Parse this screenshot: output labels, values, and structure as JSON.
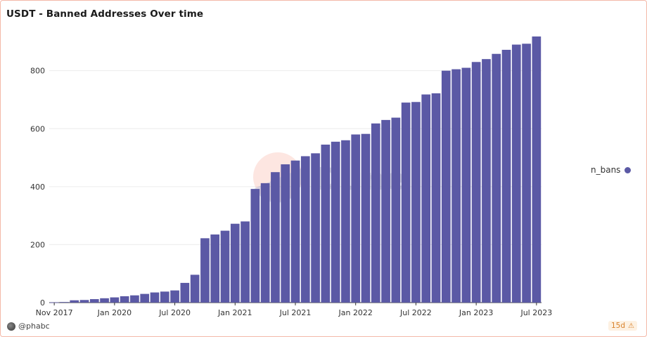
{
  "title": "USDT - Banned Addresses Over time",
  "author": "@phabc",
  "age_badge": "15d",
  "watermark": "Dune",
  "colors": {
    "bar": "#5b59a5",
    "accent": "#f4b8a8",
    "grid": "#ececec"
  },
  "chart_data": {
    "type": "bar",
    "title": "USDT - Banned Addresses Over time",
    "xlabel": "",
    "ylabel": "",
    "ylim": [
      0,
      930
    ],
    "yticks": [
      0,
      200,
      400,
      600,
      800
    ],
    "xtick_labels": [
      "Nov 2017",
      "Jan 2020",
      "Jul 2020",
      "Jan 2021",
      "Jul 2021",
      "Jan 2022",
      "Jul 2022",
      "Jan 2023",
      "Jul 2023"
    ],
    "xtick_bar_index": [
      0,
      6,
      12,
      18,
      24,
      30,
      36,
      42,
      48
    ],
    "legend_position": "right",
    "grid": true,
    "series": [
      {
        "name": "n_bans",
        "values": [
          1,
          2,
          8,
          9,
          12,
          15,
          18,
          22,
          25,
          30,
          35,
          38,
          42,
          68,
          96,
          222,
          235,
          248,
          272,
          280,
          392,
          412,
          450,
          477,
          490,
          505,
          515,
          545,
          555,
          560,
          580,
          582,
          618,
          630,
          638,
          690,
          692,
          718,
          722,
          800,
          805,
          810,
          830,
          840,
          858,
          872,
          890,
          893,
          918
        ]
      }
    ]
  }
}
